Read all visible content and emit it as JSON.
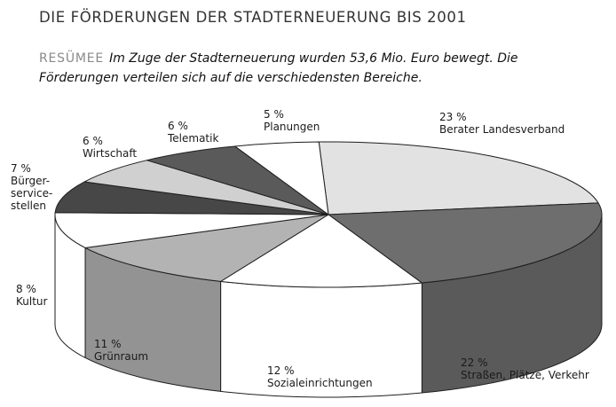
{
  "title": "DIE FÖRDERUNGEN DER STADTERNEUERUNG BIS 2001",
  "summary": {
    "lead": "RESÜMEE",
    "text": "Im Zuge der Stadterneuerung wurden 53,6 Mio. Euro bewegt. Die Förderungen verteilen sich auf die verschiedensten Bereiche."
  },
  "chart_data": {
    "type": "pie",
    "title": "DIE FÖRDERUNGEN DER STADTERNEUERUNG BIS 2001",
    "unit": "%",
    "slices": [
      {
        "id": "berater",
        "label": [
          "Berater Landesverband"
        ],
        "value": 23,
        "value_label": "23 %",
        "color": "#e2e2e2"
      },
      {
        "id": "strassen",
        "label": [
          "Straßen, Plätze, Verkehr"
        ],
        "value": 22,
        "value_label": "22 %",
        "color": "#6e6e6e"
      },
      {
        "id": "sozial",
        "label": [
          "Sozialeinrichtungen"
        ],
        "value": 12,
        "value_label": "12 %",
        "color": "#ffffff"
      },
      {
        "id": "gruenraum",
        "label": [
          "Grünraum"
        ],
        "value": 11,
        "value_label": "11 %",
        "color": "#b3b3b3"
      },
      {
        "id": "kultur",
        "label": [
          "Kultur"
        ],
        "value": 8,
        "value_label": "8 %",
        "color": "#ffffff"
      },
      {
        "id": "buerger",
        "label": [
          "Bürger-",
          "service-",
          "stellen"
        ],
        "value": 7,
        "value_label": "7 %",
        "color": "#474747"
      },
      {
        "id": "wirtschaft",
        "label": [
          "Wirtschaft"
        ],
        "value": 6,
        "value_label": "6 %",
        "color": "#d0d0d0"
      },
      {
        "id": "telematik",
        "label": [
          "Telematik"
        ],
        "value": 6,
        "value_label": "6 %",
        "color": "#5a5a5a"
      },
      {
        "id": "planungen",
        "label": [
          "Planungen"
        ],
        "value": 5,
        "value_label": "5 %",
        "color": "#ffffff"
      }
    ]
  }
}
